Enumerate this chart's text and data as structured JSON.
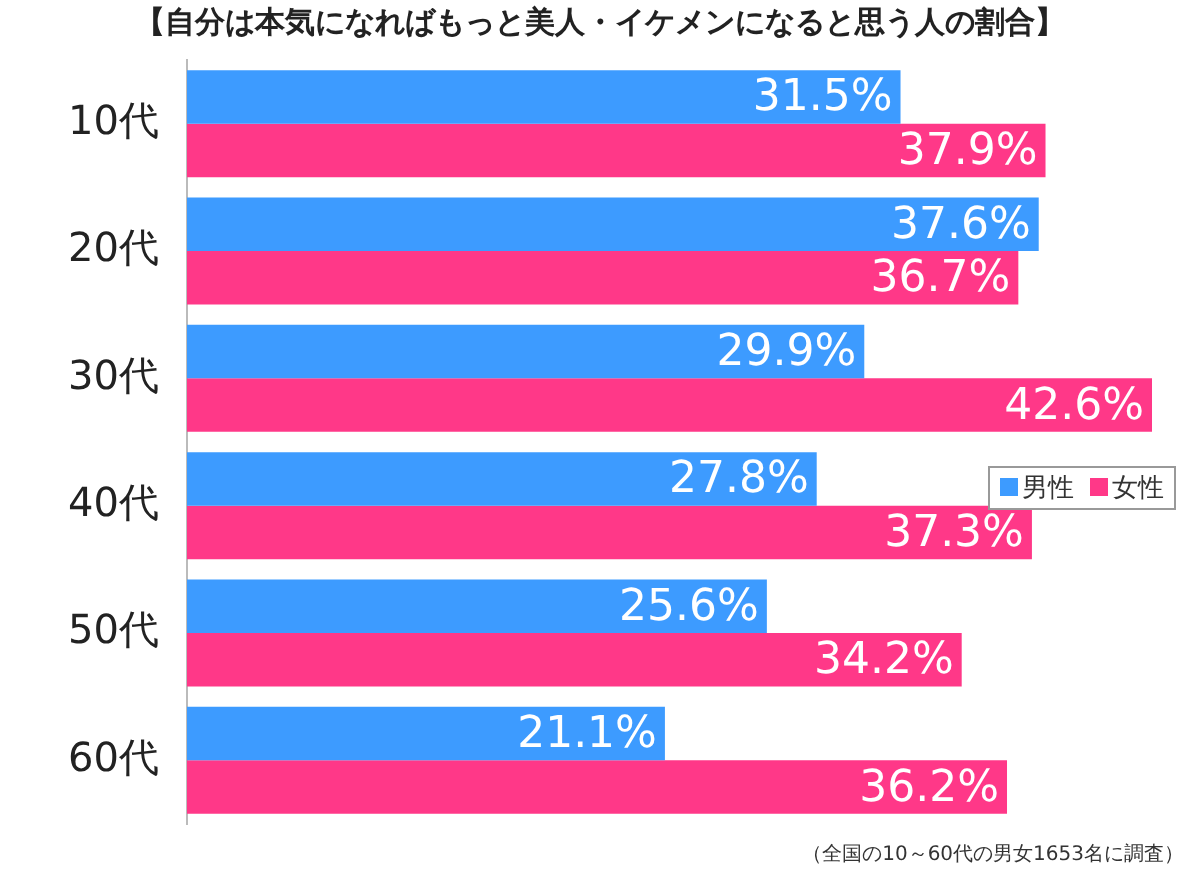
{
  "chart_data": {
    "type": "bar",
    "orientation": "horizontal",
    "title": "【自分は本気になればもっと美人・イケメンになると思う人の割合】",
    "categories": [
      "10代",
      "20代",
      "30代",
      "40代",
      "50代",
      "60代"
    ],
    "series": [
      {
        "name": "男性",
        "color": "#3d9bff",
        "values": [
          31.5,
          37.6,
          29.9,
          27.8,
          25.6,
          21.1
        ],
        "value_labels": [
          "31.5%",
          "37.6%",
          "29.9%",
          "27.8%",
          "25.6%",
          "21.1%"
        ]
      },
      {
        "name": "女性",
        "color": "#ff3888",
        "values": [
          37.9,
          36.7,
          42.6,
          37.3,
          34.2,
          36.2
        ],
        "value_labels": [
          "37.9%",
          "36.7%",
          "42.6%",
          "37.3%",
          "34.2%",
          "36.2%"
        ]
      }
    ],
    "legend": "right",
    "annotations": [
      "（全国の10～60代の男女1653名に調査）"
    ]
  }
}
